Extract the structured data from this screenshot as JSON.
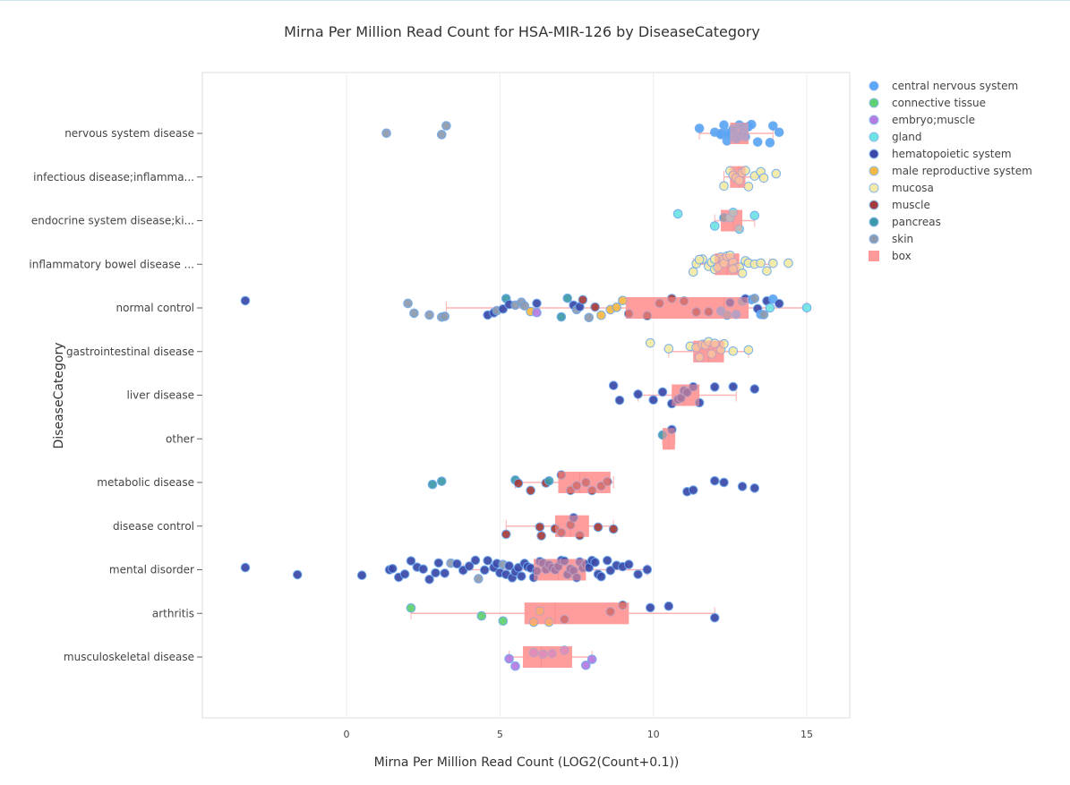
{
  "chart_data": {
    "type": "box",
    "orientation": "horizontal",
    "title": "Mirna Per Million Read Count for HSA-MIR-126 by DiseaseCategory",
    "xlabel": "Mirna Per Million Read Count (LOG2(Count+0.1))",
    "ylabel": "DiseaseCategory",
    "xlim": [
      -4.7,
      16.4
    ],
    "xticks": [
      0,
      5,
      10,
      15
    ],
    "grid": true,
    "legend_position": "right",
    "box_color": "#ff9a9a",
    "legend": [
      {
        "name": "central nervous system",
        "color": "#5aa5f5"
      },
      {
        "name": "connective tissue",
        "color": "#5fd06e"
      },
      {
        "name": "embryo;muscle",
        "color": "#b57be0"
      },
      {
        "name": "gland",
        "color": "#6ee3e3"
      },
      {
        "name": "hematopoietic system",
        "color": "#3a48a8"
      },
      {
        "name": "male reproductive system",
        "color": "#f5b844"
      },
      {
        "name": "mucosa",
        "color": "#f2eaa6"
      },
      {
        "name": "muscle",
        "color": "#a23c3c"
      },
      {
        "name": "pancreas",
        "color": "#3c9ba8"
      },
      {
        "name": "skin",
        "color": "#8e9bae"
      },
      {
        "name": "box",
        "color": "#ff9a9a"
      }
    ],
    "categories": [
      {
        "label": "nervous system disease",
        "box": [
          11.5,
          12.5,
          12.8,
          13.1,
          13.9
        ],
        "points": [
          [
            1.3,
            9
          ],
          [
            3.1,
            9
          ],
          [
            3.25,
            9
          ],
          [
            11.5,
            0
          ],
          [
            12.0,
            0
          ],
          [
            12.2,
            0
          ],
          [
            12.3,
            0
          ],
          [
            12.4,
            0
          ],
          [
            12.5,
            0
          ],
          [
            12.6,
            0
          ],
          [
            12.6,
            0
          ],
          [
            12.7,
            0
          ],
          [
            12.8,
            0
          ],
          [
            12.8,
            0
          ],
          [
            12.9,
            0
          ],
          [
            13.0,
            0
          ],
          [
            13.0,
            0
          ],
          [
            13.1,
            0
          ],
          [
            12.2,
            0
          ],
          [
            12.4,
            0
          ],
          [
            12.9,
            0
          ],
          [
            13.2,
            0
          ],
          [
            13.4,
            0
          ],
          [
            13.8,
            0
          ],
          [
            13.9,
            0
          ],
          [
            14.1,
            0
          ]
        ]
      },
      {
        "label": "infectious disease;inflamma...",
        "box": [
          12.3,
          12.5,
          12.8,
          13.0,
          13.6
        ],
        "points": [
          [
            12.3,
            6
          ],
          [
            12.5,
            6
          ],
          [
            12.6,
            6
          ],
          [
            12.7,
            6
          ],
          [
            12.8,
            6
          ],
          [
            12.9,
            6
          ],
          [
            13.0,
            6
          ],
          [
            13.1,
            6
          ],
          [
            13.3,
            6
          ],
          [
            13.5,
            6
          ],
          [
            13.6,
            6
          ],
          [
            14.0,
            6
          ]
        ]
      },
      {
        "label": "endocrine system disease;ki...",
        "box": [
          12.0,
          12.2,
          12.6,
          12.9,
          13.3
        ],
        "points": [
          [
            10.8,
            3
          ],
          [
            12.0,
            3
          ],
          [
            12.3,
            8
          ],
          [
            12.5,
            3
          ],
          [
            12.6,
            3
          ],
          [
            12.8,
            3
          ],
          [
            13.3,
            3
          ]
        ]
      },
      {
        "label": "inflammatory bowel disease ...",
        "box": [
          11.3,
          12.0,
          12.4,
          12.8,
          13.8
        ],
        "points": [
          [
            11.3,
            6
          ],
          [
            11.4,
            6
          ],
          [
            11.6,
            6
          ],
          [
            11.8,
            6
          ],
          [
            11.9,
            6
          ],
          [
            12.0,
            6
          ],
          [
            12.1,
            6
          ],
          [
            12.2,
            6
          ],
          [
            12.3,
            6
          ],
          [
            12.3,
            6
          ],
          [
            12.4,
            6
          ],
          [
            12.5,
            6
          ],
          [
            12.6,
            6
          ],
          [
            12.7,
            6
          ],
          [
            12.8,
            6
          ],
          [
            12.9,
            6
          ],
          [
            13.0,
            6
          ],
          [
            13.1,
            6
          ],
          [
            13.3,
            6
          ],
          [
            13.5,
            6
          ],
          [
            13.7,
            6
          ],
          [
            13.9,
            6
          ],
          [
            14.4,
            6
          ],
          [
            11.5,
            6
          ],
          [
            12.0,
            6
          ],
          [
            12.6,
            6
          ]
        ]
      },
      {
        "label": "normal control",
        "box": [
          3.25,
          9.1,
          12.3,
          13.1,
          15.0
        ],
        "points": [
          [
            -3.3,
            4
          ],
          [
            2.0,
            9
          ],
          [
            2.2,
            9
          ],
          [
            2.7,
            9
          ],
          [
            3.1,
            9
          ],
          [
            3.2,
            9
          ],
          [
            4.6,
            4
          ],
          [
            4.8,
            4
          ],
          [
            4.9,
            9
          ],
          [
            5.1,
            4
          ],
          [
            5.2,
            8
          ],
          [
            5.3,
            4
          ],
          [
            5.5,
            9
          ],
          [
            5.7,
            9
          ],
          [
            5.8,
            9
          ],
          [
            6.0,
            5
          ],
          [
            6.2,
            2
          ],
          [
            6.2,
            4
          ],
          [
            7.0,
            8
          ],
          [
            7.2,
            8
          ],
          [
            7.4,
            4
          ],
          [
            7.5,
            9
          ],
          [
            7.6,
            4
          ],
          [
            7.7,
            7
          ],
          [
            7.9,
            9
          ],
          [
            8.1,
            7
          ],
          [
            8.3,
            5
          ],
          [
            8.6,
            5
          ],
          [
            8.8,
            5
          ],
          [
            9.0,
            5
          ],
          [
            9.2,
            7
          ],
          [
            9.8,
            7
          ],
          [
            10.2,
            7
          ],
          [
            10.6,
            7
          ],
          [
            11.0,
            7
          ],
          [
            11.4,
            7
          ],
          [
            11.8,
            7
          ],
          [
            12.2,
            0
          ],
          [
            12.4,
            9
          ],
          [
            12.5,
            4
          ],
          [
            12.7,
            0
          ],
          [
            12.9,
            9
          ],
          [
            13.0,
            4
          ],
          [
            13.2,
            0
          ],
          [
            13.3,
            9
          ],
          [
            13.4,
            4
          ],
          [
            13.5,
            0
          ],
          [
            13.6,
            9
          ],
          [
            13.7,
            4
          ],
          [
            13.8,
            3
          ],
          [
            13.9,
            0
          ],
          [
            14.1,
            4
          ],
          [
            15.0,
            3
          ]
        ]
      },
      {
        "label": "gastrointestinal disease",
        "box": [
          10.5,
          11.3,
          11.8,
          12.3,
          13.1
        ],
        "points": [
          [
            9.9,
            6
          ],
          [
            10.5,
            6
          ],
          [
            11.2,
            6
          ],
          [
            11.4,
            6
          ],
          [
            11.5,
            6
          ],
          [
            11.6,
            6
          ],
          [
            11.7,
            6
          ],
          [
            11.8,
            6
          ],
          [
            11.9,
            6
          ],
          [
            12.0,
            6
          ],
          [
            12.2,
            6
          ],
          [
            12.3,
            6
          ],
          [
            12.6,
            6
          ],
          [
            13.1,
            6
          ]
        ]
      },
      {
        "label": "liver disease",
        "box": [
          9.5,
          10.6,
          11.0,
          11.5,
          12.7
        ],
        "points": [
          [
            8.7,
            4
          ],
          [
            8.9,
            4
          ],
          [
            9.5,
            4
          ],
          [
            10.0,
            4
          ],
          [
            10.3,
            4
          ],
          [
            10.6,
            4
          ],
          [
            10.8,
            4
          ],
          [
            10.9,
            4
          ],
          [
            11.0,
            4
          ],
          [
            11.1,
            4
          ],
          [
            11.3,
            4
          ],
          [
            11.5,
            4
          ],
          [
            12.0,
            4
          ],
          [
            12.6,
            4
          ],
          [
            13.3,
            4
          ]
        ]
      },
      {
        "label": "other",
        "box": [
          10.3,
          10.3,
          10.5,
          10.7,
          10.7
        ],
        "points": [
          [
            10.3,
            8
          ],
          [
            10.6,
            4
          ]
        ]
      },
      {
        "label": "metabolic disease",
        "box": [
          5.5,
          6.9,
          7.6,
          8.6,
          8.7
        ],
        "points": [
          [
            2.8,
            8
          ],
          [
            3.1,
            8
          ],
          [
            5.5,
            8
          ],
          [
            5.6,
            7
          ],
          [
            6.0,
            7
          ],
          [
            6.5,
            7
          ],
          [
            6.6,
            8
          ],
          [
            7.0,
            7
          ],
          [
            7.3,
            7
          ],
          [
            7.5,
            7
          ],
          [
            7.8,
            7
          ],
          [
            8.0,
            7
          ],
          [
            8.3,
            7
          ],
          [
            8.5,
            7
          ],
          [
            11.1,
            4
          ],
          [
            11.3,
            4
          ],
          [
            12.0,
            4
          ],
          [
            12.3,
            4
          ],
          [
            12.9,
            4
          ],
          [
            13.3,
            4
          ]
        ]
      },
      {
        "label": "disease control",
        "box": [
          5.2,
          6.8,
          7.3,
          7.9,
          8.7
        ],
        "points": [
          [
            5.2,
            7
          ],
          [
            6.3,
            7
          ],
          [
            6.35,
            7
          ],
          [
            6.8,
            7
          ],
          [
            7.0,
            7
          ],
          [
            7.3,
            7
          ],
          [
            7.4,
            4
          ],
          [
            7.6,
            7
          ],
          [
            8.2,
            7
          ],
          [
            8.7,
            7
          ]
        ]
      },
      {
        "label": "mental disorder",
        "box": [
          3.8,
          6.1,
          6.9,
          7.8,
          9.8
        ],
        "points": [
          [
            -3.3,
            4
          ],
          [
            -1.6,
            4
          ],
          [
            0.5,
            4
          ],
          [
            1.4,
            4
          ],
          [
            1.5,
            4
          ],
          [
            1.7,
            4
          ],
          [
            1.9,
            4
          ],
          [
            2.1,
            4
          ],
          [
            2.3,
            4
          ],
          [
            2.5,
            4
          ],
          [
            2.7,
            4
          ],
          [
            2.9,
            4
          ],
          [
            3.0,
            4
          ],
          [
            3.2,
            4
          ],
          [
            3.4,
            9
          ],
          [
            3.6,
            4
          ],
          [
            3.8,
            4
          ],
          [
            4.0,
            4
          ],
          [
            4.2,
            4
          ],
          [
            4.3,
            9
          ],
          [
            4.5,
            4
          ],
          [
            4.6,
            4
          ],
          [
            4.8,
            4
          ],
          [
            4.9,
            4
          ],
          [
            5.0,
            4
          ],
          [
            5.1,
            9
          ],
          [
            5.2,
            4
          ],
          [
            5.3,
            4
          ],
          [
            5.4,
            4
          ],
          [
            5.5,
            4
          ],
          [
            5.6,
            4
          ],
          [
            5.7,
            4
          ],
          [
            5.8,
            4
          ],
          [
            5.9,
            4
          ],
          [
            6.0,
            4
          ],
          [
            6.1,
            4
          ],
          [
            6.2,
            4
          ],
          [
            6.3,
            4
          ],
          [
            6.4,
            4
          ],
          [
            6.5,
            4
          ],
          [
            6.6,
            4
          ],
          [
            6.7,
            4
          ],
          [
            6.8,
            4
          ],
          [
            6.9,
            4
          ],
          [
            7.0,
            4
          ],
          [
            7.1,
            4
          ],
          [
            7.2,
            4
          ],
          [
            7.3,
            4
          ],
          [
            7.4,
            4
          ],
          [
            7.5,
            4
          ],
          [
            7.6,
            4
          ],
          [
            7.7,
            4
          ],
          [
            7.8,
            4
          ],
          [
            7.9,
            4
          ],
          [
            8.0,
            4
          ],
          [
            8.1,
            4
          ],
          [
            8.2,
            4
          ],
          [
            8.3,
            4
          ],
          [
            8.5,
            4
          ],
          [
            8.6,
            4
          ],
          [
            8.8,
            4
          ],
          [
            9.0,
            4
          ],
          [
            9.2,
            4
          ],
          [
            9.5,
            4
          ],
          [
            9.8,
            4
          ]
        ]
      },
      {
        "label": "arthritis",
        "box": [
          2.1,
          5.8,
          6.8,
          9.2,
          12.0
        ],
        "points": [
          [
            2.1,
            1
          ],
          [
            4.4,
            1
          ],
          [
            5.1,
            1
          ],
          [
            6.1,
            5
          ],
          [
            6.3,
            5
          ],
          [
            6.6,
            5
          ],
          [
            7.1,
            7
          ],
          [
            8.6,
            7
          ],
          [
            9.0,
            7
          ],
          [
            9.9,
            4
          ],
          [
            10.5,
            4
          ],
          [
            12.0,
            4
          ]
        ]
      },
      {
        "label": "musculoskeletal disease",
        "box": [
          5.3,
          5.75,
          6.35,
          7.35,
          8.0
        ],
        "points": [
          [
            5.3,
            2
          ],
          [
            5.5,
            2
          ],
          [
            6.1,
            2
          ],
          [
            6.4,
            2
          ],
          [
            6.7,
            2
          ],
          [
            7.1,
            2
          ],
          [
            7.8,
            2
          ],
          [
            8.0,
            2
          ]
        ]
      }
    ]
  }
}
